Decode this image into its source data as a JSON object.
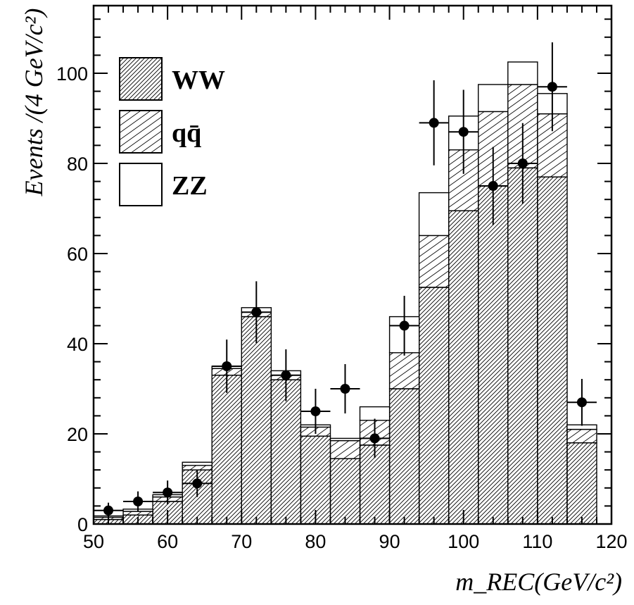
{
  "chart_data": {
    "type": "bar",
    "subtype": "stacked-histogram-with-data-points",
    "xlabel": "m_REC(GeV/c²)",
    "ylabel": "Events /(4 GeV/c²)",
    "xlim": [
      50,
      120
    ],
    "ylim": [
      0,
      115
    ],
    "x_ticks": [
      50,
      60,
      70,
      80,
      90,
      100,
      110,
      120
    ],
    "y_ticks": [
      0,
      20,
      40,
      60,
      80,
      100
    ],
    "bin_width": 4,
    "bin_edges": [
      50,
      54,
      58,
      62,
      66,
      70,
      74,
      78,
      82,
      86,
      90,
      94,
      98,
      102,
      106,
      110,
      114,
      118
    ],
    "series": [
      {
        "name": "WW",
        "pattern": "dense-hatch",
        "values": [
          1,
          2,
          5,
          12,
          33,
          46,
          32,
          19.5,
          14.5,
          17.5,
          30,
          52.5,
          69.5,
          75,
          79,
          77,
          18
        ]
      },
      {
        "name": "qq̄",
        "pattern": "sparse-hatch",
        "values": [
          0.5,
          0.8,
          1,
          1,
          1.5,
          1,
          1,
          2,
          4,
          5.5,
          8,
          11.5,
          13.5,
          16.5,
          18.5,
          14,
          3
        ]
      },
      {
        "name": "ZZ",
        "pattern": "empty",
        "values": [
          0.3,
          0.5,
          0.5,
          0.7,
          0.5,
          1,
          1,
          0.5,
          0.5,
          3,
          8,
          9.5,
          7.5,
          6,
          5,
          4.5,
          1
        ]
      }
    ],
    "data_points": {
      "x": [
        52,
        56,
        60,
        64,
        68,
        72,
        76,
        80,
        84,
        88,
        92,
        96,
        100,
        104,
        108,
        112,
        116
      ],
      "y": [
        3,
        5,
        7,
        9,
        35,
        47,
        33,
        25,
        30,
        19,
        44,
        89,
        87,
        75,
        80,
        97,
        27
      ]
    },
    "legend": {
      "position": "top-left",
      "entries": [
        {
          "label": "WW",
          "pattern": "dense-hatch"
        },
        {
          "label": "qq̄",
          "pattern": "sparse-hatch"
        },
        {
          "label": "ZZ",
          "pattern": "empty"
        }
      ]
    },
    "grid": false
  }
}
